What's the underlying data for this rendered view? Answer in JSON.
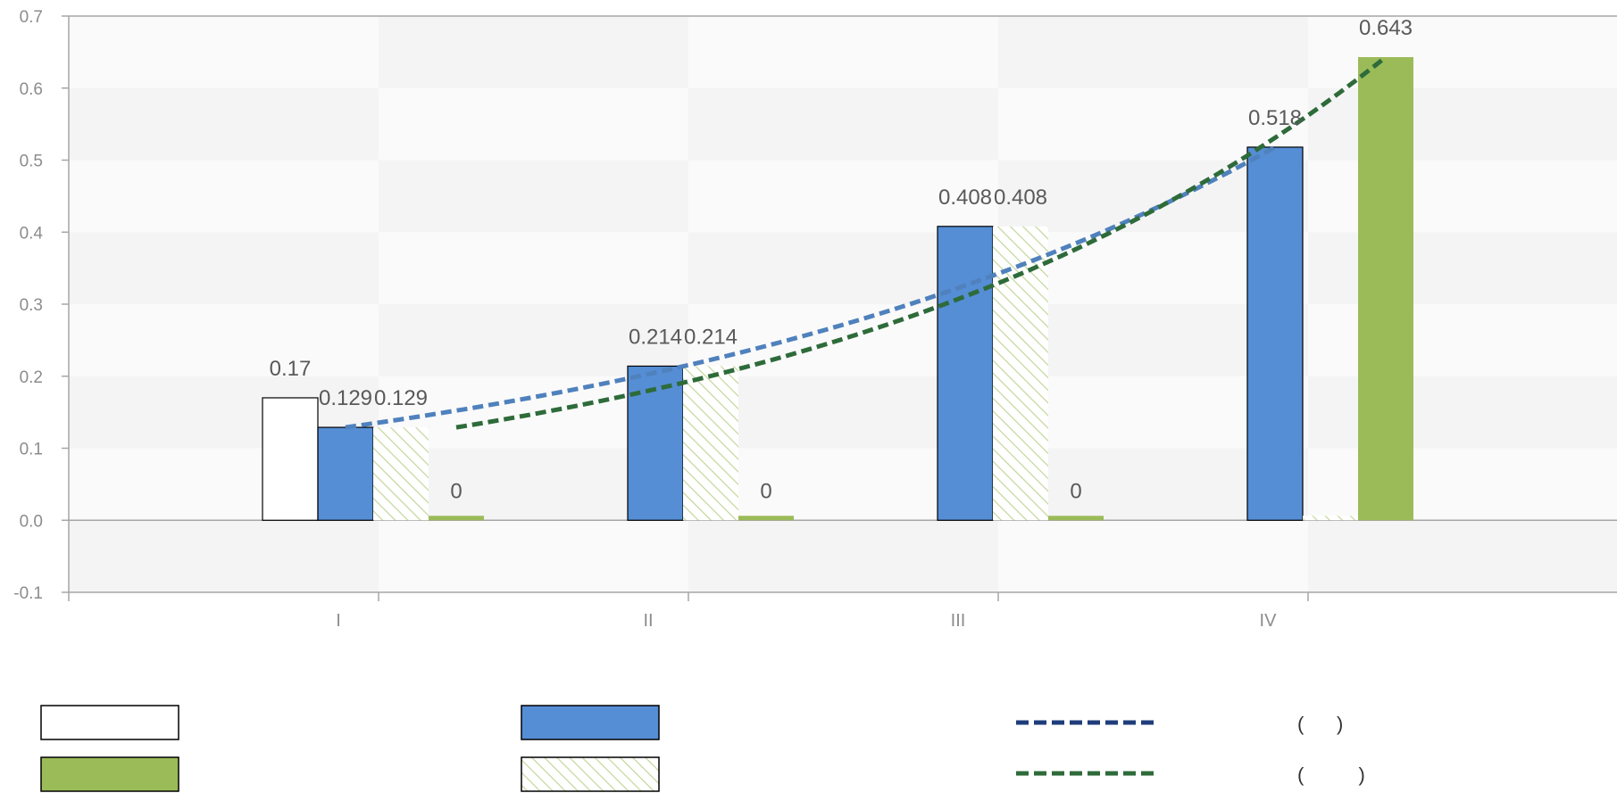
{
  "chart_data": {
    "type": "bar",
    "categories": [
      "I",
      "II",
      "III",
      "IV"
    ],
    "ylim": [
      -0.1,
      0.7
    ],
    "yticks": [
      "0.7",
      "0.6",
      "0.5",
      "0.4",
      "0.3",
      "0.2",
      "0.1",
      "0.0",
      "-0.1"
    ],
    "grid": false,
    "series": [
      {
        "values": [
          0.17,
          null,
          null,
          null
        ],
        "labels": [
          "0.17",
          "",
          "",
          ""
        ],
        "style": "white",
        "color": "#ffffff",
        "stroke": "#000000"
      },
      {
        "values": [
          0.129,
          0.214,
          0.408,
          0.518
        ],
        "labels": [
          "0.129",
          "0.214",
          "0.408",
          "0.518"
        ],
        "style": "solid",
        "color": "#558ed5",
        "stroke": "#000000"
      },
      {
        "values": [
          0.129,
          0.214,
          0.408,
          0
        ],
        "labels": [
          "0.129",
          "0.214",
          "0.408",
          ""
        ],
        "style": "hatched",
        "color": "#c3d69b"
      },
      {
        "values": [
          0,
          0,
          0,
          0.643
        ],
        "labels": [
          "0",
          "0",
          "0",
          "0.643"
        ],
        "style": "solid",
        "color": "#9bbb59"
      }
    ],
    "trendlines": [
      {
        "series_index": 1,
        "type": "exponential",
        "color": "#4f81bd",
        "from": [
          0.129,
          0.518
        ]
      },
      {
        "series_index": 3,
        "type": "exponential",
        "color": "#2e6b3a",
        "from": [
          0.129,
          0.643
        ]
      }
    ],
    "legend": {
      "placement": "bottom",
      "items": [
        {
          "kind": "white-box",
          "label": ""
        },
        {
          "kind": "blue-box",
          "label": ""
        },
        {
          "kind": "blue-dash",
          "label": "(      )"
        },
        {
          "kind": "green-box",
          "label": ""
        },
        {
          "kind": "hatch-box",
          "label": ""
        },
        {
          "kind": "green-dash",
          "label": "(          )"
        }
      ]
    }
  }
}
